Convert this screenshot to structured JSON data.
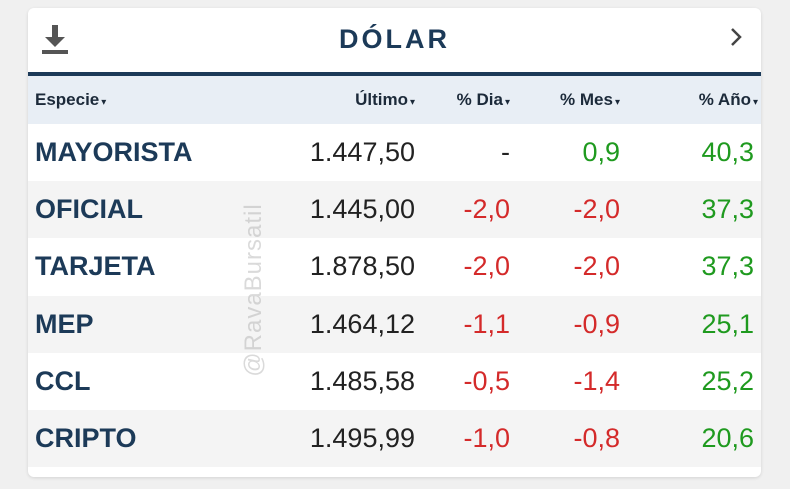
{
  "widget": {
    "title": "DÓLAR",
    "download_icon": "download-icon",
    "next_icon": "chevron-right-icon",
    "watermark": "@RavaBursatil"
  },
  "columns": [
    {
      "label": "Especie",
      "sort_icon": "▾"
    },
    {
      "label": "Último",
      "sort_icon": "▾"
    },
    {
      "label": "% Dia",
      "sort_icon": "▾"
    },
    {
      "label": "% Mes",
      "sort_icon": "▾"
    },
    {
      "label": "% Año",
      "sort_icon": "▾"
    }
  ],
  "rows": [
    {
      "especie": "MAYORISTA",
      "ultimo": "1.447,50",
      "dia": "-",
      "mes": "0,9",
      "anio": "40,3"
    },
    {
      "especie": "OFICIAL",
      "ultimo": "1.445,00",
      "dia": "-2,0",
      "mes": "-2,0",
      "anio": "37,3"
    },
    {
      "especie": "TARJETA",
      "ultimo": "1.878,50",
      "dia": "-2,0",
      "mes": "-2,0",
      "anio": "37,3"
    },
    {
      "especie": "MEP",
      "ultimo": "1.464,12",
      "dia": "-1,1",
      "mes": "-0,9",
      "anio": "25,1"
    },
    {
      "especie": "CCL",
      "ultimo": "1.485,58",
      "dia": "-0,5",
      "mes": "-1,4",
      "anio": "25,2"
    },
    {
      "especie": "CRIPTO",
      "ultimo": "1.495,99",
      "dia": "-1,0",
      "mes": "-0,8",
      "anio": "20,6"
    }
  ],
  "colors": {
    "title": "#1c3a58",
    "header_bg": "#e8eef5",
    "negative": "#d42a2a",
    "positive": "#1f9a1f"
  }
}
